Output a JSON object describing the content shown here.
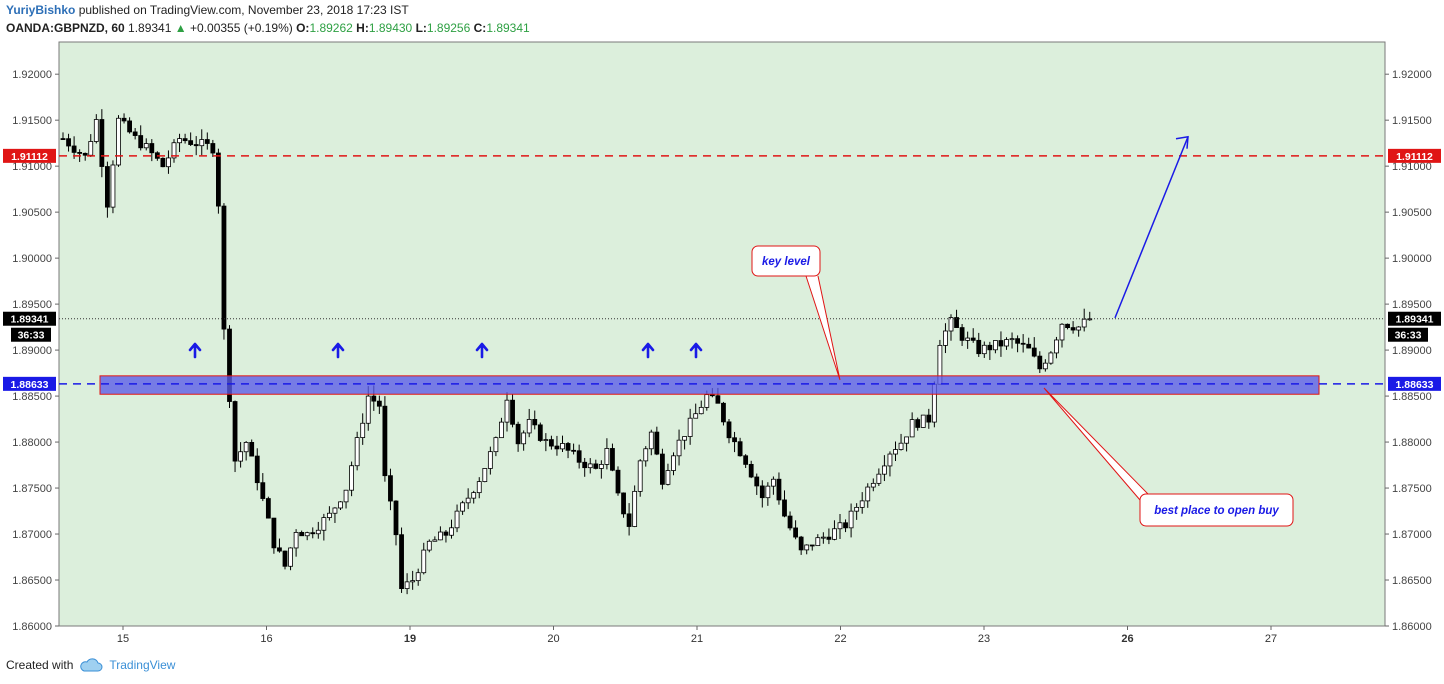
{
  "header": {
    "author": "YuriyBishko",
    "published": "published on TradingView.com, November 23, 2018 17:23 IST",
    "symbol": "OANDA:GBPNZD, 60",
    "last": "1.89341",
    "change_arrow": "▲",
    "change": "+0.00355 (+0.19%)",
    "o_label": "O:",
    "o_value": "1.89262",
    "h_label": "H:",
    "h_value": "1.89430",
    "l_label": "L:",
    "l_value": "1.89256",
    "c_label": "C:",
    "c_value": "1.89341"
  },
  "footer": {
    "created_with": "Created with",
    "brand": "TradingView",
    "logo_icon": "tradingview-cloud-icon"
  },
  "colors": {
    "plot_bg": "#dcefdc",
    "target_line": "#e01515",
    "key_line": "#1a1ae6",
    "zone_fill": "#5a5ae8",
    "zone_border": "#e01515",
    "arrow": "#1a1ae6",
    "callout_border": "#e01515",
    "callout_text": "#1a1ae6"
  },
  "chart_data": {
    "type": "candlestick",
    "instrument": "OANDA:GBPNZD",
    "timeframe": "60",
    "ylim": [
      1.86,
      1.9235
    ],
    "y_ticks": [
      "1.92000",
      "1.91500",
      "1.91000",
      "1.90500",
      "1.90000",
      "1.89500",
      "1.89000",
      "1.88500",
      "1.88000",
      "1.87500",
      "1.87000",
      "1.86500",
      "1.86000"
    ],
    "x_ticks": [
      {
        "label": "15",
        "bold": false
      },
      {
        "label": "16",
        "bold": false
      },
      {
        "label": "19",
        "bold": true
      },
      {
        "label": "20",
        "bold": false
      },
      {
        "label": "21",
        "bold": false
      },
      {
        "label": "22",
        "bold": false
      },
      {
        "label": "23",
        "bold": false
      },
      {
        "label": "26",
        "bold": true
      },
      {
        "label": "27",
        "bold": false
      }
    ],
    "grid": false,
    "horizontal_lines": [
      {
        "name": "target",
        "value": 1.91112,
        "label": "1.91112",
        "style": "dashed",
        "color": "#e01515"
      },
      {
        "name": "key-level",
        "value": 1.88633,
        "label": "1.88633",
        "style": "dashed",
        "color": "#1a1ae6"
      },
      {
        "name": "last-price",
        "value": 1.89341,
        "label": "1.89341",
        "style": "dotted",
        "color": "#333333"
      }
    ],
    "countdown": "36:33",
    "support_zone": {
      "low": 1.8852,
      "high": 1.8872
    },
    "up_arrow_markers_count": 5,
    "annotations": [
      {
        "text": "key level"
      },
      {
        "text": "best place to open buy"
      }
    ],
    "projection": {
      "from": 1.8935,
      "to": 1.9132
    },
    "waypoints": [
      [
        0,
        1.913
      ],
      [
        4,
        1.911
      ],
      [
        6,
        1.915
      ],
      [
        8,
        1.906
      ],
      [
        10,
        1.915
      ],
      [
        13,
        1.913
      ],
      [
        15,
        1.912
      ],
      [
        18,
        1.91
      ],
      [
        21,
        1.913
      ],
      [
        24,
        1.9125
      ],
      [
        27,
        1.912
      ],
      [
        28,
        1.906
      ],
      [
        29,
        1.892
      ],
      [
        31,
        1.878
      ],
      [
        33,
        1.88
      ],
      [
        35,
        1.876
      ],
      [
        38,
        1.869
      ],
      [
        40,
        1.8665
      ],
      [
        42,
        1.8705
      ],
      [
        44,
        1.87
      ],
      [
        46,
        1.871
      ],
      [
        48,
        1.872
      ],
      [
        51,
        1.875
      ],
      [
        53,
        1.88
      ],
      [
        55,
        1.885
      ],
      [
        57,
        1.884
      ],
      [
        58,
        1.876
      ],
      [
        60,
        1.87
      ],
      [
        61,
        1.864
      ],
      [
        63,
        1.865
      ],
      [
        66,
        1.869
      ],
      [
        69,
        1.87
      ],
      [
        72,
        1.873
      ],
      [
        75,
        1.876
      ],
      [
        78,
        1.88
      ],
      [
        80,
        1.885
      ],
      [
        82,
        1.88
      ],
      [
        84,
        1.882
      ],
      [
        87,
        1.88
      ],
      [
        90,
        1.8795
      ],
      [
        93,
        1.878
      ],
      [
        96,
        1.877
      ],
      [
        98,
        1.879
      ],
      [
        100,
        1.874
      ],
      [
        102,
        1.871
      ],
      [
        104,
        1.878
      ],
      [
        106,
        1.881
      ],
      [
        108,
        1.876
      ],
      [
        110,
        1.879
      ],
      [
        113,
        1.882
      ],
      [
        116,
        1.885
      ],
      [
        118,
        1.884
      ],
      [
        120,
        1.881
      ],
      [
        123,
        1.878
      ],
      [
        126,
        1.874
      ],
      [
        128,
        1.876
      ],
      [
        130,
        1.872
      ],
      [
        133,
        1.868
      ],
      [
        135,
        1.869
      ],
      [
        138,
        1.87
      ],
      [
        141,
        1.871
      ],
      [
        143,
        1.873
      ],
      [
        146,
        1.876
      ],
      [
        149,
        1.879
      ],
      [
        151,
        1.88
      ],
      [
        153,
        1.882
      ],
      [
        156,
        1.8825
      ],
      [
        158,
        1.891
      ],
      [
        160,
        1.893
      ],
      [
        162,
        1.8915
      ],
      [
        165,
        1.89
      ],
      [
        168,
        1.8905
      ],
      [
        171,
        1.891
      ],
      [
        174,
        1.89
      ],
      [
        176,
        1.888
      ],
      [
        178,
        1.89
      ],
      [
        180,
        1.893
      ],
      [
        183,
        1.8925
      ],
      [
        185,
        1.8934
      ]
    ]
  }
}
